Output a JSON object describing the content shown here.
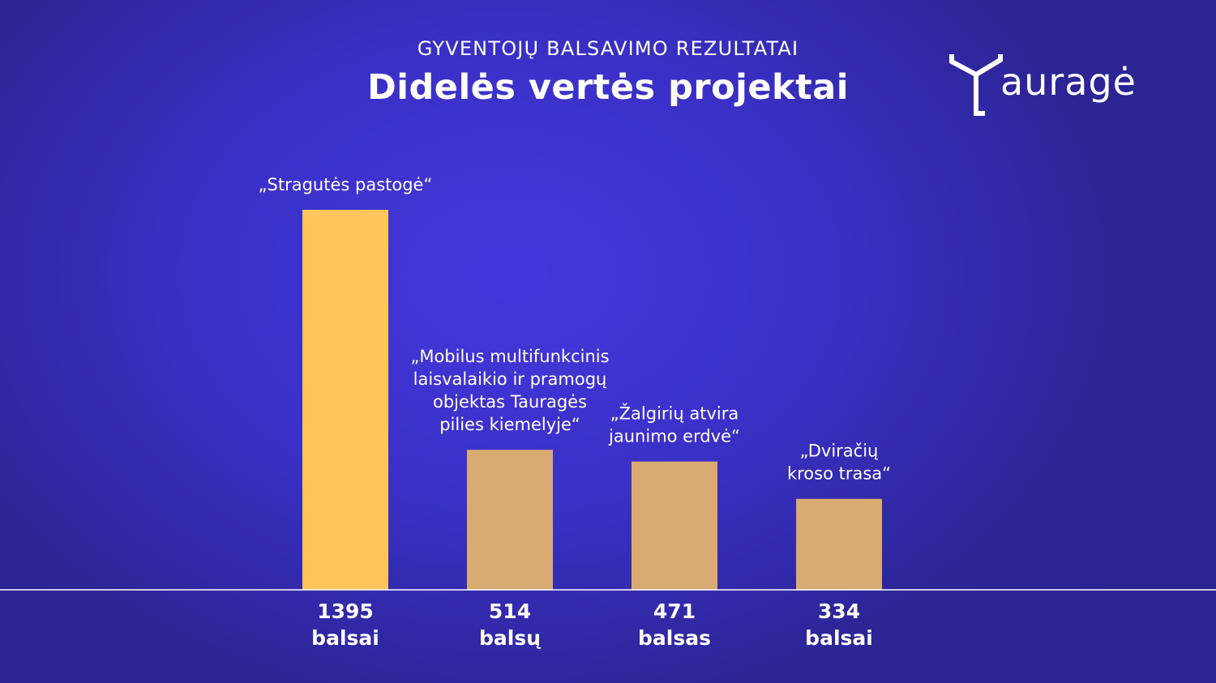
{
  "header": {
    "subtitle": "GYVENTOJŲ BALSAVIMO REZULTATAI",
    "title": "Didelės vertės projektai"
  },
  "logo": {
    "text": "auragė",
    "icon": "taurage-y-logo-icon",
    "color": "#ffffff"
  },
  "colors": {
    "background": "#3a30c6",
    "highlight_bar": "#ffc55a",
    "bar": "#d9aa72",
    "axis": "#ffffff",
    "text": "#ffffff"
  },
  "chart_data": {
    "type": "bar",
    "title": "Didelės vertės projektai",
    "subtitle": "GYVENTOJŲ BALSAVIMO REZULTATAI",
    "categories": [
      [
        "„Stragutės pastogė“"
      ],
      [
        "„Mobilus multifunkcinis",
        "laisvalaikio ir pramogų",
        "objektas Tauragės",
        "pilies kiemelyje“"
      ],
      [
        "„Žalgirių atvira",
        "jaunimo erdvė“"
      ],
      [
        "„Dviračių",
        "kroso trasa“"
      ]
    ],
    "values": [
      1395,
      514,
      471,
      334
    ],
    "value_units": [
      "balsai",
      "balsų",
      "balsas",
      "balsai"
    ],
    "highlight_index": 0,
    "ylim": [
      0,
      1395
    ],
    "grid": false,
    "xlabel": "",
    "ylabel": ""
  }
}
